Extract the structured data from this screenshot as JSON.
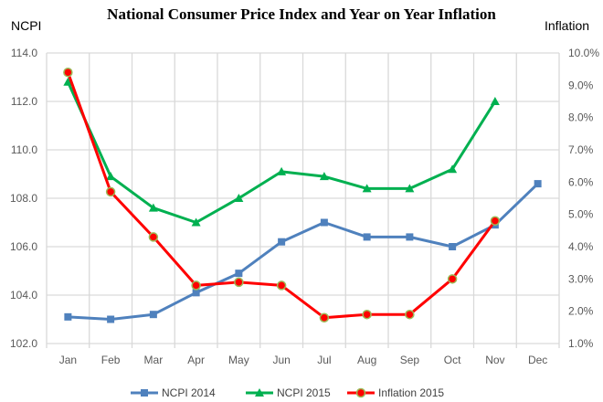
{
  "chart_data": {
    "type": "line",
    "title": "National Consumer Price Index and Year on Year Inflation",
    "ylabel": "NCPI",
    "y2label": "Inflation",
    "categories": [
      "Jan",
      "Feb",
      "Mar",
      "Apr",
      "May",
      "Jun",
      "Jul",
      "Aug",
      "Sep",
      "Oct",
      "Nov",
      "Dec"
    ],
    "ylim": [
      102,
      114
    ],
    "yticks": [
      "102.0",
      "104.0",
      "106.0",
      "108.0",
      "110.0",
      "112.0",
      "114.0"
    ],
    "y2lim": [
      1,
      10
    ],
    "y2ticks": [
      "1.0%",
      "2.0%",
      "3.0%",
      "4.0%",
      "5.0%",
      "6.0%",
      "7.0%",
      "8.0%",
      "9.0%",
      "10.0%"
    ],
    "grid": true,
    "legend": "bottom",
    "series": [
      {
        "name": "NCPI 2014",
        "axis": "left",
        "marker": "square",
        "color": "#4f81bd",
        "values": [
          103.1,
          103.0,
          103.2,
          104.1,
          104.9,
          106.2,
          107.0,
          106.4,
          106.4,
          106.0,
          106.9,
          108.6
        ]
      },
      {
        "name": "NCPI 2015",
        "axis": "left",
        "marker": "triangle",
        "color": "#00b050",
        "values": [
          112.8,
          108.9,
          107.6,
          107.0,
          108.0,
          109.1,
          108.9,
          108.4,
          108.4,
          109.2,
          112.0,
          null
        ]
      },
      {
        "name": "Inflation 2015",
        "axis": "right",
        "marker": "circle",
        "color": "#ff0000",
        "values": [
          9.4,
          5.7,
          4.3,
          2.8,
          2.9,
          2.8,
          1.8,
          1.9,
          1.9,
          3.0,
          4.8,
          null
        ]
      }
    ]
  }
}
